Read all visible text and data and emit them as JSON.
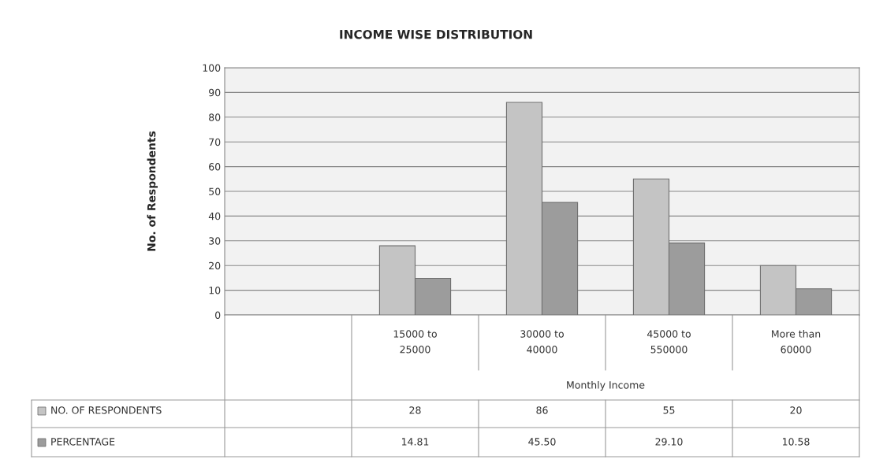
{
  "chart_data": {
    "type": "bar",
    "title": "INCOME WISE DISTRIBUTION",
    "xlabel": "Monthly Income",
    "ylabel": "No. of Respondents",
    "categories": [
      null,
      "15000 to\n25000",
      "30000 to\n40000",
      "45000 to\n550000",
      "More than\n60000"
    ],
    "series": [
      {
        "name": "NO. OF RESPONDENTS",
        "color": "#c4c4c4",
        "values": [
          null,
          28,
          86,
          55,
          20
        ],
        "value_labels": [
          null,
          "28",
          "86",
          "55",
          "20"
        ]
      },
      {
        "name": "PERCENTAGE",
        "color": "#9c9c9c",
        "values": [
          null,
          14.81,
          45.5,
          29.1,
          10.58
        ],
        "value_labels": [
          null,
          "14.81",
          "45.50",
          "29.10",
          "10.58"
        ]
      }
    ],
    "ylim": [
      0,
      100
    ],
    "yticks": [
      0,
      10,
      20,
      30,
      40,
      50,
      60,
      70,
      80,
      90,
      100
    ],
    "grid": "y",
    "legend": "bottom"
  }
}
